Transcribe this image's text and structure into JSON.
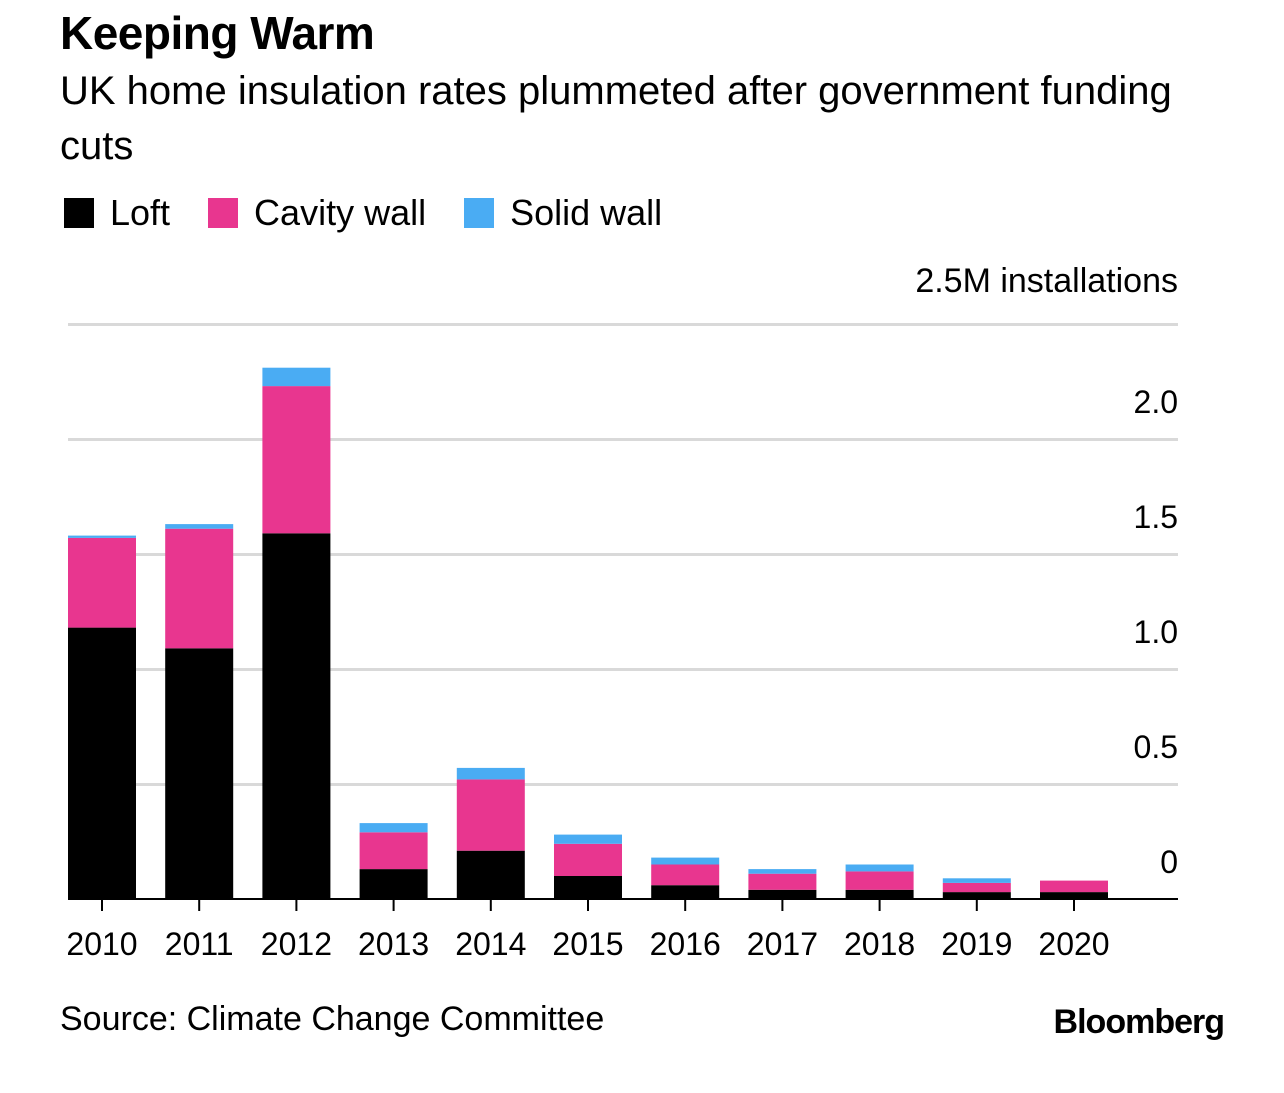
{
  "chart_data": {
    "type": "bar",
    "stacked": true,
    "title": "Keeping Warm",
    "subtitle": "UK home insulation rates plummeted after government funding cuts",
    "unit_label": "2.5M installations",
    "source": "Source: Climate Change Committee",
    "brand": "Bloomberg",
    "categories": [
      "2010",
      "2011",
      "2012",
      "2013",
      "2014",
      "2015",
      "2016",
      "2017",
      "2018",
      "2019",
      "2020"
    ],
    "series": [
      {
        "name": "Loft",
        "color": "#000000",
        "values": [
          1.18,
          1.09,
          1.59,
          0.13,
          0.21,
          0.1,
          0.06,
          0.04,
          0.04,
          0.03,
          0.03
        ]
      },
      {
        "name": "Cavity wall",
        "color": "#e8368f",
        "values": [
          0.39,
          0.52,
          0.64,
          0.16,
          0.31,
          0.14,
          0.09,
          0.07,
          0.08,
          0.04,
          0.05
        ]
      },
      {
        "name": "Solid wall",
        "color": "#4aacf3",
        "values": [
          0.01,
          0.02,
          0.08,
          0.04,
          0.05,
          0.04,
          0.03,
          0.02,
          0.03,
          0.02,
          0.0
        ]
      }
    ],
    "y_ticks": [
      "0",
      "0.5",
      "1.0",
      "1.5",
      "2.0"
    ],
    "ylim": [
      0,
      2.5
    ],
    "grid": true,
    "legend_position": "top-left"
  }
}
